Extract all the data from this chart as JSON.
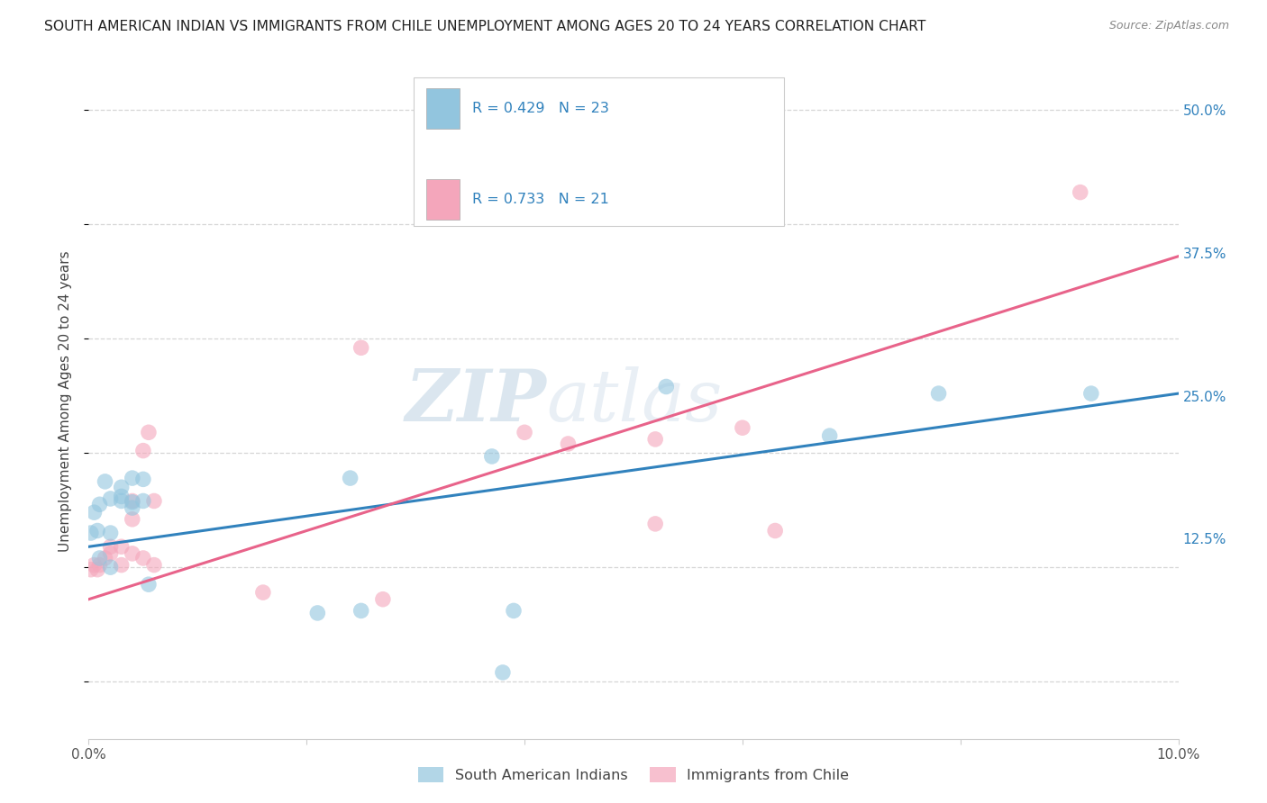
{
  "title": "SOUTH AMERICAN INDIAN VS IMMIGRANTS FROM CHILE UNEMPLOYMENT AMONG AGES 20 TO 24 YEARS CORRELATION CHART",
  "source": "Source: ZipAtlas.com",
  "ylabel": "Unemployment Among Ages 20 to 24 years",
  "xlim": [
    0.0,
    0.1
  ],
  "ylim": [
    -0.05,
    0.54
  ],
  "yticks": [
    0.0,
    0.125,
    0.25,
    0.375,
    0.5
  ],
  "ytick_labels": [
    "",
    "12.5%",
    "25.0%",
    "37.5%",
    "50.0%"
  ],
  "xticks": [
    0.0,
    0.02,
    0.04,
    0.06,
    0.08,
    0.1
  ],
  "xtick_labels": [
    "0.0%",
    "",
    "",
    "",
    "",
    "10.0%"
  ],
  "blue_scatter": [
    [
      0.0002,
      0.13
    ],
    [
      0.0005,
      0.148
    ],
    [
      0.0008,
      0.132
    ],
    [
      0.001,
      0.108
    ],
    [
      0.001,
      0.155
    ],
    [
      0.0015,
      0.175
    ],
    [
      0.002,
      0.13
    ],
    [
      0.002,
      0.1
    ],
    [
      0.002,
      0.16
    ],
    [
      0.003,
      0.17
    ],
    [
      0.003,
      0.158
    ],
    [
      0.003,
      0.162
    ],
    [
      0.004,
      0.178
    ],
    [
      0.004,
      0.152
    ],
    [
      0.004,
      0.157
    ],
    [
      0.005,
      0.177
    ],
    [
      0.005,
      0.158
    ],
    [
      0.0055,
      0.085
    ],
    [
      0.024,
      0.178
    ],
    [
      0.025,
      0.062
    ],
    [
      0.037,
      0.197
    ],
    [
      0.038,
      0.008
    ],
    [
      0.039,
      0.062
    ],
    [
      0.021,
      0.06
    ],
    [
      0.053,
      0.258
    ],
    [
      0.068,
      0.215
    ],
    [
      0.078,
      0.252
    ],
    [
      0.092,
      0.252
    ]
  ],
  "pink_scatter": [
    [
      0.0002,
      0.098
    ],
    [
      0.0005,
      0.102
    ],
    [
      0.0008,
      0.098
    ],
    [
      0.001,
      0.102
    ],
    [
      0.0015,
      0.108
    ],
    [
      0.002,
      0.112
    ],
    [
      0.002,
      0.118
    ],
    [
      0.003,
      0.102
    ],
    [
      0.003,
      0.118
    ],
    [
      0.004,
      0.112
    ],
    [
      0.004,
      0.142
    ],
    [
      0.004,
      0.158
    ],
    [
      0.005,
      0.108
    ],
    [
      0.005,
      0.202
    ],
    [
      0.0055,
      0.218
    ],
    [
      0.006,
      0.102
    ],
    [
      0.006,
      0.158
    ],
    [
      0.016,
      0.078
    ],
    [
      0.025,
      0.292
    ],
    [
      0.027,
      0.072
    ],
    [
      0.04,
      0.218
    ],
    [
      0.044,
      0.208
    ],
    [
      0.052,
      0.212
    ],
    [
      0.052,
      0.138
    ],
    [
      0.06,
      0.222
    ],
    [
      0.063,
      0.132
    ],
    [
      0.091,
      0.428
    ]
  ],
  "blue_R": "0.429",
  "blue_N": "23",
  "pink_R": "0.733",
  "pink_N": "21",
  "blue_color": "#92c5de",
  "pink_color": "#f4a6bb",
  "blue_line_color": "#3182bd",
  "pink_line_color": "#e8638a",
  "blue_line": [
    [
      0.0,
      0.118
    ],
    [
      0.1,
      0.252
    ]
  ],
  "pink_line": [
    [
      0.0,
      0.072
    ],
    [
      0.1,
      0.372
    ]
  ],
  "watermark_text": "ZIPatlas",
  "background_color": "#ffffff",
  "grid_color": "#cccccc",
  "legend_label_blue": "South American Indians",
  "legend_label_pink": "Immigrants from Chile"
}
